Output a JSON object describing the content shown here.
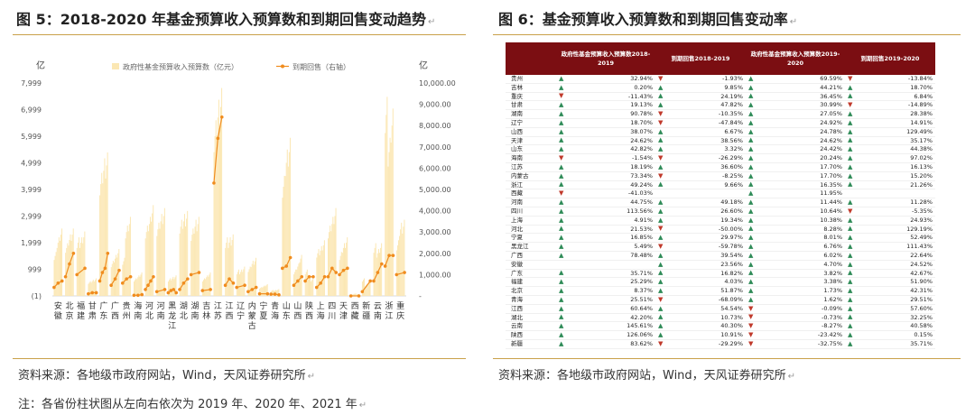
{
  "fig5": {
    "title": "图 5：2018-2020 年基金预算收入预算数和到期回售变动趋势",
    "source": "资料来源：各地级市政府网站，Wind，天风证券研究所",
    "note": "注：各省份柱状图从左向右依次为 2019 年、2020 年、2021 年"
  },
  "fig6": {
    "title": "图 6：基金预算收入预算数和到期回售变动率",
    "source": "资料来源：各地级市政府网站，Wind，天风证券研究所",
    "headers": [
      "",
      "政府性基金预算收入预算数2018-2019",
      "到期回售2018-2019",
      "政府性基金预算收入预算数2019-2020",
      "到期回售2019-2020"
    ],
    "rows": [
      [
        "贵州",
        "up",
        "32.94%",
        "down",
        "-1.93%",
        "up",
        "69.59%",
        "down",
        "-13.84%"
      ],
      [
        "吉林",
        "up",
        "0.20%",
        "up",
        "9.85%",
        "up",
        "44.21%",
        "up",
        "18.70%"
      ],
      [
        "重庆",
        "down",
        "-11.43%",
        "up",
        "24.19%",
        "up",
        "36.45%",
        "up",
        "6.84%"
      ],
      [
        "甘肃",
        "up",
        "19.13%",
        "up",
        "47.82%",
        "up",
        "30.99%",
        "down",
        "-14.89%"
      ],
      [
        "湖南",
        "up",
        "90.78%",
        "down",
        "-10.35%",
        "up",
        "27.05%",
        "up",
        "28.38%"
      ],
      [
        "辽宁",
        "up",
        "18.70%",
        "down",
        "-47.84%",
        "up",
        "24.92%",
        "up",
        "14.91%"
      ],
      [
        "山西",
        "up",
        "38.07%",
        "up",
        "6.67%",
        "up",
        "24.78%",
        "up",
        "129.49%"
      ],
      [
        "天津",
        "up",
        "24.62%",
        "up",
        "38.56%",
        "up",
        "24.62%",
        "up",
        "35.17%"
      ],
      [
        "山东",
        "up",
        "42.82%",
        "up",
        "3.32%",
        "up",
        "24.42%",
        "up",
        "44.38%"
      ],
      [
        "海南",
        "down",
        "-1.54%",
        "down",
        "-26.29%",
        "up",
        "20.24%",
        "up",
        "97.02%"
      ],
      [
        "江苏",
        "up",
        "18.19%",
        "up",
        "36.60%",
        "up",
        "17.70%",
        "up",
        "16.13%"
      ],
      [
        "内蒙古",
        "up",
        "73.34%",
        "down",
        "-8.25%",
        "up",
        "17.70%",
        "up",
        "15.20%"
      ],
      [
        "浙江",
        "up",
        "49.24%",
        "up",
        "9.66%",
        "up",
        "16.35%",
        "up",
        "21.26%"
      ],
      [
        "西藏",
        "down",
        "-41.03%",
        "",
        "",
        "up",
        "11.95%",
        "",
        ""
      ],
      [
        "河南",
        "up",
        "44.75%",
        "up",
        "49.18%",
        "up",
        "11.44%",
        "up",
        "11.28%"
      ],
      [
        "四川",
        "up",
        "113.56%",
        "up",
        "26.60%",
        "up",
        "10.64%",
        "down",
        "-5.35%"
      ],
      [
        "上海",
        "up",
        "4.91%",
        "up",
        "19.34%",
        "up",
        "10.38%",
        "up",
        "24.93%"
      ],
      [
        "河北",
        "up",
        "21.53%",
        "down",
        "-50.00%",
        "up",
        "8.28%",
        "up",
        "129.19%"
      ],
      [
        "宁夏",
        "up",
        "16.85%",
        "up",
        "29.97%",
        "up",
        "8.01%",
        "up",
        "52.49%"
      ],
      [
        "黑龙江",
        "up",
        "5.49%",
        "down",
        "-59.78%",
        "up",
        "6.76%",
        "up",
        "111.43%"
      ],
      [
        "广西",
        "up",
        "78.48%",
        "up",
        "39.54%",
        "up",
        "6.02%",
        "up",
        "22.64%"
      ],
      [
        "安徽",
        "",
        "",
        "up",
        "23.56%",
        "up",
        "4.70%",
        "up",
        "24.52%"
      ],
      [
        "广东",
        "up",
        "35.71%",
        "up",
        "16.82%",
        "up",
        "3.82%",
        "up",
        "42.67%"
      ],
      [
        "福建",
        "up",
        "25.29%",
        "up",
        "4.03%",
        "up",
        "3.38%",
        "up",
        "51.90%"
      ],
      [
        "北京",
        "up",
        "8.37%",
        "up",
        "51.87%",
        "up",
        "1.73%",
        "up",
        "42.31%"
      ],
      [
        "青海",
        "up",
        "25.51%",
        "down",
        "-68.09%",
        "up",
        "1.62%",
        "up",
        "29.51%"
      ],
      [
        "江西",
        "up",
        "60.64%",
        "up",
        "54.54%",
        "down",
        "-0.09%",
        "up",
        "57.60%"
      ],
      [
        "湖北",
        "up",
        "42.20%",
        "up",
        "10.73%",
        "down",
        "-0.73%",
        "up",
        "32.25%"
      ],
      [
        "云南",
        "up",
        "145.61%",
        "up",
        "40.30%",
        "down",
        "-8.27%",
        "up",
        "40.58%"
      ],
      [
        "陕西",
        "up",
        "126.06%",
        "up",
        "10.91%",
        "down",
        "-23.42%",
        "up",
        "0.15%"
      ],
      [
        "新疆",
        "up",
        "83.62%",
        "down",
        "-29.29%",
        "down",
        "-32.75%",
        "up",
        "35.71%"
      ]
    ]
  },
  "colors": {
    "bar": "#fbe7b3",
    "line": "#f08c1e",
    "header_bg": "#7b0e12",
    "up_arrow": "#2e8b57",
    "down_arrow": "#c0392b",
    "rule": "#c9a14a"
  },
  "chart_data": {
    "type": "bar",
    "title": "",
    "legend": [
      "政府性基金预算收入预算数（亿元）",
      "到期回售（右轴）"
    ],
    "legend_position": "top",
    "ylabel_left": "亿",
    "ylabel_right": "亿",
    "y_left_ticks": [
      "7,999",
      "6,999",
      "5,999",
      "4,999",
      "3,999",
      "2,999",
      "1,999",
      "999",
      "(1)"
    ],
    "y_right_ticks": [
      "10,000.00",
      "9,000.00",
      "8,000.00",
      "7,000.00",
      "6,000.00",
      "5,000.00",
      "4,000.00",
      "3,000.00",
      "2,000.00",
      "1,000.00",
      "-"
    ],
    "y_left_range": [
      -1,
      7999
    ],
    "y_right_range": [
      0,
      10000
    ],
    "categories": [
      "安徽",
      "北京",
      "福建",
      "甘肃",
      "广东",
      "广西",
      "贵州",
      "海南",
      "河北",
      "河南",
      "黑龙江",
      "湖北",
      "湖南",
      "吉林",
      "江苏",
      "江西",
      "辽宁",
      "内蒙古",
      "宁夏",
      "青海",
      "山东",
      "山西",
      "陕西",
      "上海",
      "四川",
      "天津",
      "西藏",
      "新疆",
      "云南",
      "浙江",
      "重庆"
    ],
    "category_labels": [
      [
        "安",
        "徽"
      ],
      [
        "北",
        "京"
      ],
      [
        "福",
        "建"
      ],
      [
        "甘",
        "肃"
      ],
      [
        "广",
        "东"
      ],
      [
        "广",
        "西"
      ],
      [
        "贵",
        "州"
      ],
      [
        "海",
        "南"
      ],
      [
        "河",
        "北"
      ],
      [
        "河",
        "南"
      ],
      [
        "黑",
        "龙",
        "江"
      ],
      [
        "湖",
        "北"
      ],
      [
        "湖",
        "南"
      ],
      [
        "吉",
        "林"
      ],
      [
        "江",
        "苏"
      ],
      [
        "江",
        "西"
      ],
      [
        "辽",
        "宁"
      ],
      [
        "内",
        "蒙",
        "古"
      ],
      [
        "宁",
        "夏"
      ],
      [
        "青",
        "海"
      ],
      [
        "山",
        "东"
      ],
      [
        "山",
        "西"
      ],
      [
        "陕",
        "西"
      ],
      [
        "上",
        "海"
      ],
      [
        "四",
        "川"
      ],
      [
        "天",
        "津"
      ],
      [
        "西",
        "藏"
      ],
      [
        "新",
        "疆"
      ],
      [
        "云",
        "南"
      ],
      [
        "浙",
        "江"
      ],
      [
        "重",
        "庆"
      ]
    ],
    "bar_series": [
      {
        "name": "2019",
        "values": [
          1500,
          1800,
          2000,
          500,
          4200,
          1200,
          1300,
          600,
          2400,
          2500,
          600,
          2600,
          2300,
          600,
          6000,
          2000,
          900,
          1000,
          300,
          200,
          4100,
          900,
          900,
          1600,
          2400,
          1500,
          50,
          600,
          1800,
          6800,
          1900
        ]
      },
      {
        "name": "2020",
        "values": [
          2000,
          2100,
          2000,
          550,
          4700,
          1400,
          2400,
          700,
          2700,
          2800,
          650,
          2800,
          2600,
          700,
          6700,
          2000,
          900,
          1200,
          350,
          200,
          5000,
          1100,
          700,
          1700,
          2700,
          1800,
          80,
          400,
          1600,
          5400,
          2500
        ]
      },
      {
        "name": "2021",
        "values": [
          2300,
          2300,
          2200,
          600,
          4900,
          1600,
          2700,
          800,
          3100,
          3000,
          700,
          2900,
          2700,
          800,
          7100,
          2100,
          1000,
          1300,
          400,
          230,
          5400,
          1400,
          600,
          1900,
          3000,
          2000,
          60,
          500,
          1800,
          6400,
          2600
        ]
      }
    ],
    "line_series": {
      "name": "到期回售（右轴）",
      "points": [
        [
          0,
          [
            400,
            600,
            700
          ]
        ],
        [
          1,
          [
            900,
            1500,
            2000
          ]
        ],
        [
          2,
          [
            1000,
            1300
          ]
        ],
        [
          3,
          [
            100,
            150,
            150
          ]
        ],
        [
          4,
          [
            700,
            1100,
            1300,
            2000
          ]
        ],
        [
          5,
          [
            500,
            800,
            1200
          ]
        ],
        [
          6,
          [
            600,
            800,
            900
          ]
        ],
        [
          7,
          [
            30,
            30,
            60
          ]
        ],
        [
          8,
          [
            300,
            500,
            700,
            900
          ]
        ],
        [
          9,
          [
            200,
            300
          ]
        ],
        [
          10,
          [
            150,
            250,
            300,
            150
          ]
        ],
        [
          11,
          [
            300,
            600,
            800
          ]
        ],
        [
          12,
          [
            1000,
            1100
          ]
        ],
        [
          13,
          [
            250,
            300
          ]
        ],
        [
          14,
          [
            5300,
            7400,
            8400
          ]
        ],
        [
          15,
          [
            500,
            800,
            600
          ]
        ],
        [
          16,
          [
            400,
            500
          ]
        ],
        [
          17,
          [
            200,
            300,
            400
          ]
        ],
        [
          18,
          [
            100,
            100
          ]
        ],
        [
          19,
          [
            80,
            80,
            50
          ]
        ],
        [
          20,
          [
            1300,
            1400,
            1800
          ]
        ],
        [
          21,
          [
            500,
            700,
            900
          ]
        ],
        [
          22,
          [
            700,
            900,
            900
          ]
        ],
        [
          23,
          [
            400,
            600,
            900
          ]
        ],
        [
          24,
          [
            900,
            1300,
            1100
          ]
        ],
        [
          25,
          [
            1000,
            1200,
            1300
          ]
        ],
        [
          26,
          [
            0,
            0
          ]
        ],
        [
          27,
          [
            200,
            700
          ]
        ],
        [
          28,
          [
            700,
            1100,
            1500
          ]
        ],
        [
          29,
          [
            1400,
            1900,
            1900
          ]
        ],
        [
          30,
          [
            1000,
            1100
          ]
        ]
      ]
    }
  }
}
